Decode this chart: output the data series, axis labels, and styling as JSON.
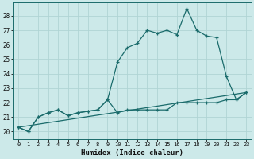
{
  "xlabel": "Humidex (Indice chaleur)",
  "bg_color": "#cce9e9",
  "line_color": "#1a6b6b",
  "grid_color": "#b0d4d4",
  "xlim": [
    -0.5,
    23.5
  ],
  "ylim": [
    19.5,
    28.9
  ],
  "yticks": [
    20,
    21,
    22,
    23,
    24,
    25,
    26,
    27,
    28
  ],
  "xticks": [
    0,
    1,
    2,
    3,
    4,
    5,
    6,
    7,
    8,
    9,
    10,
    11,
    12,
    13,
    14,
    15,
    16,
    17,
    18,
    19,
    20,
    21,
    22,
    23
  ],
  "series1_x": [
    0,
    1,
    2,
    3,
    4,
    5,
    6,
    7,
    8,
    9,
    10,
    11,
    12,
    13,
    14,
    15,
    16,
    17,
    18,
    19,
    20,
    21,
    22,
    23
  ],
  "series1_y": [
    20.3,
    20.0,
    21.0,
    21.3,
    21.5,
    21.1,
    21.3,
    21.4,
    21.5,
    22.2,
    24.8,
    25.8,
    26.1,
    27.0,
    26.8,
    27.0,
    26.7,
    28.5,
    27.0,
    26.6,
    26.5,
    23.8,
    22.2,
    22.7
  ],
  "series2_x": [
    0,
    1,
    2,
    3,
    4,
    5,
    6,
    7,
    8,
    9,
    10,
    11,
    12,
    13,
    14,
    15,
    16,
    17,
    18,
    19,
    20,
    21,
    22,
    23
  ],
  "series2_y": [
    20.3,
    20.0,
    21.0,
    21.3,
    21.5,
    21.1,
    21.3,
    21.4,
    21.5,
    22.2,
    21.3,
    21.5,
    21.5,
    21.5,
    21.5,
    21.5,
    22.0,
    22.0,
    22.0,
    22.0,
    22.0,
    22.2,
    22.2,
    22.7
  ],
  "series3_x": [
    0,
    23
  ],
  "series3_y": [
    20.3,
    22.7
  ]
}
